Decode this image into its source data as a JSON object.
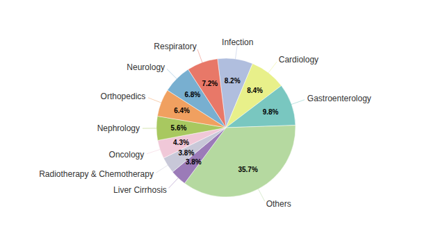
{
  "chart_data": {
    "type": "pie",
    "categories": [
      "Infection",
      "Cardiology",
      "Gastroenterology",
      "Others",
      "Liver Cirrhosis",
      "Radiotherapy & Chemotherapy",
      "Oncology",
      "Nephrology",
      "Orthopedics",
      "Neurology",
      "Respiratory"
    ],
    "values": [
      8.2,
      8.4,
      9.8,
      35.7,
      3.8,
      3.8,
      4.3,
      5.6,
      6.4,
      6.8,
      7.2
    ],
    "value_labels": [
      "8.2%",
      "8.4%",
      "9.8%",
      "35.7%",
      "3.8%",
      "3.8%",
      "4.3%",
      "5.6%",
      "6.4%",
      "6.8%",
      "7.2%"
    ],
    "colors": [
      "#b0bede",
      "#e8f08a",
      "#79c7c0",
      "#b5d9a0",
      "#9b7bb8",
      "#c8c8d8",
      "#f0c8d8",
      "#a8c860",
      "#f0a060",
      "#78afd0",
      "#e87868"
    ],
    "data_labels": true
  }
}
